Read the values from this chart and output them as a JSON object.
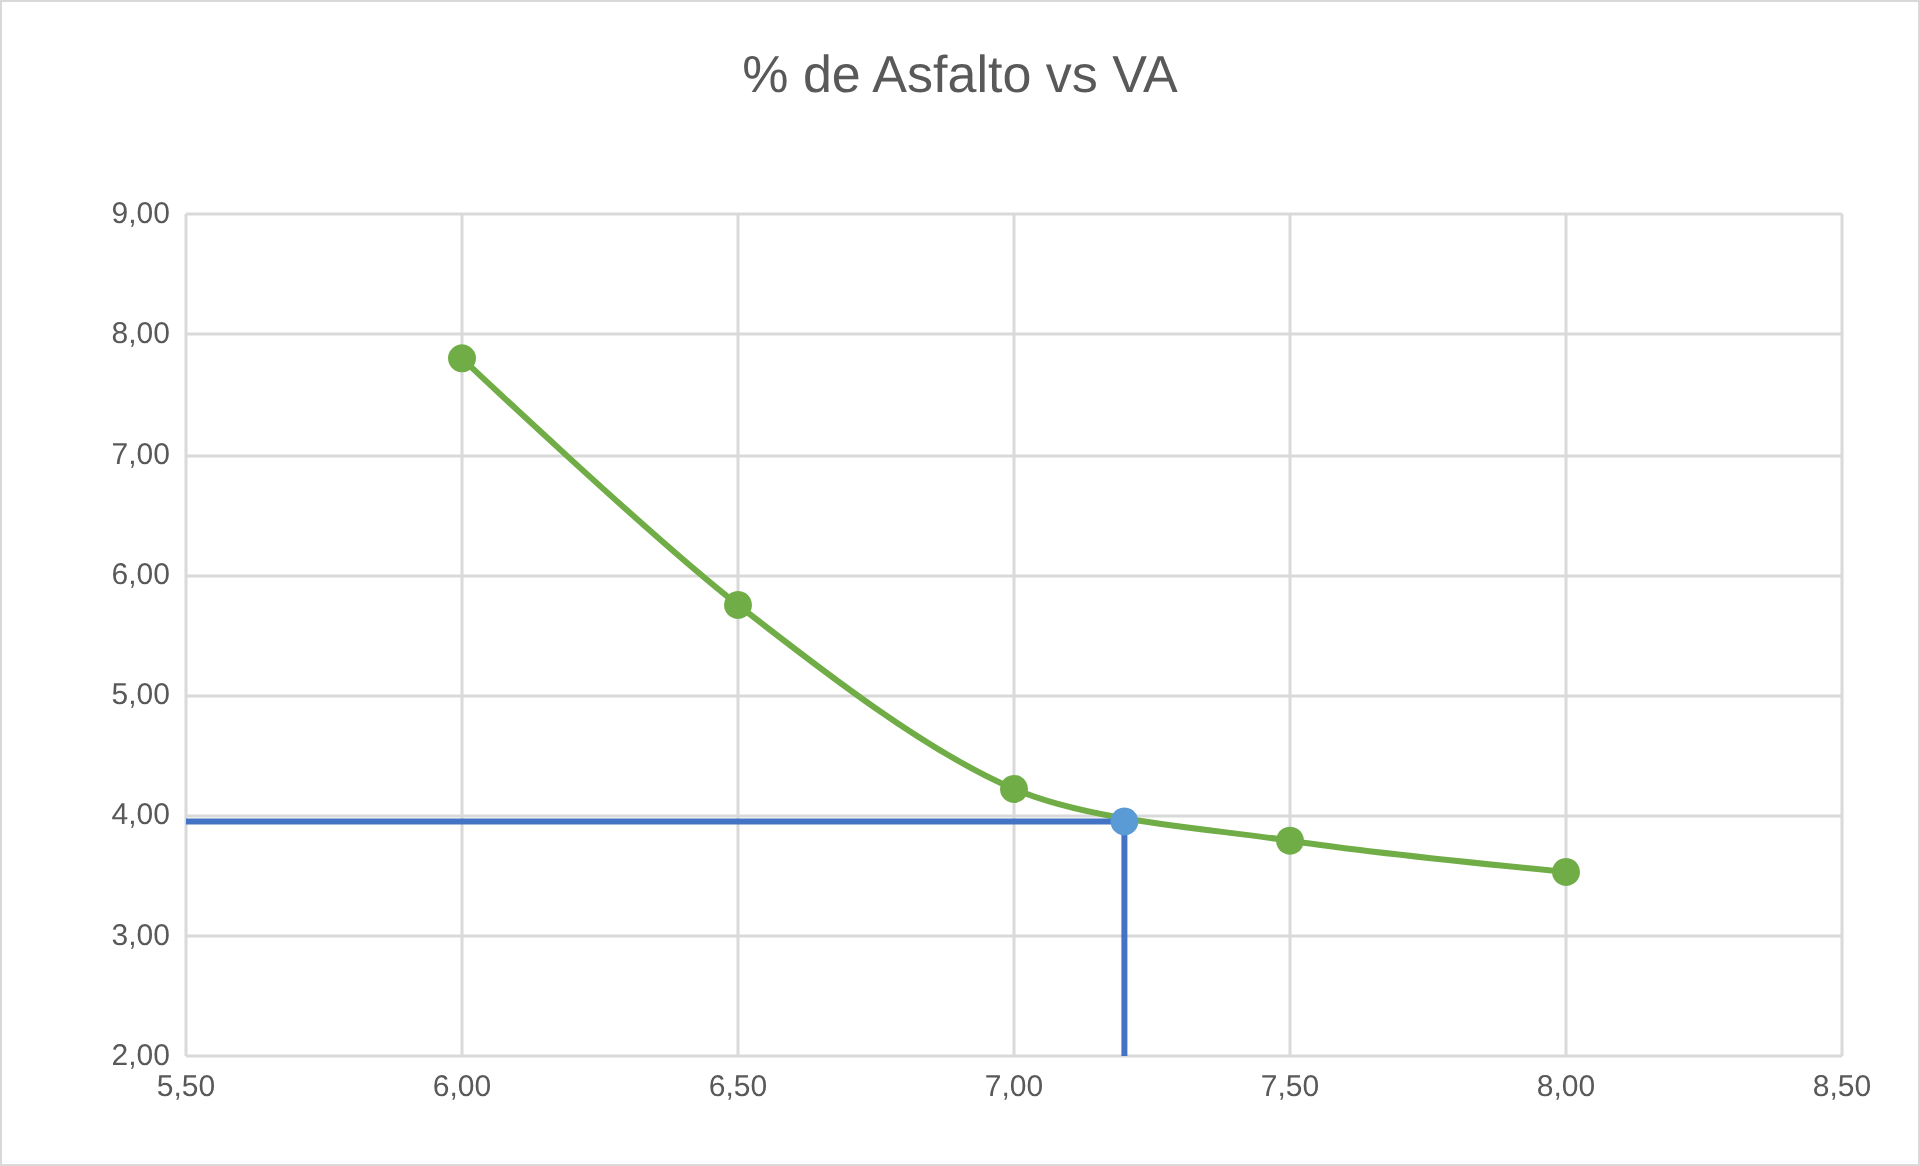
{
  "chart_data": {
    "type": "line",
    "title": "% de Asfalto vs VA",
    "series": [
      {
        "color": "#70ad47",
        "marker": "circle",
        "x": [
          6.0,
          6.5,
          7.0,
          7.5,
          8.0
        ],
        "values": [
          7.8,
          5.75,
          4.22,
          3.79,
          3.53
        ]
      },
      {
        "type": "step",
        "color": "#4472c4",
        "marker": "none",
        "x": [
          5.5,
          7.2
        ],
        "values": [
          3.95,
          2.0
        ]
      },
      {
        "type": "scatter",
        "color": "#5b9bd5",
        "marker": "circle",
        "x": [
          7.2
        ],
        "values": [
          3.95
        ]
      }
    ],
    "xlim": [
      5.5,
      8.5
    ],
    "xticks": [
      {
        "value": 5.5,
        "label": "5,50"
      },
      {
        "value": 6,
        "label": "6,00"
      },
      {
        "value": 6.5,
        "label": "6,50"
      },
      {
        "value": 7,
        "label": "7,00"
      },
      {
        "value": 7.5,
        "label": "7,50"
      },
      {
        "value": 8,
        "label": "8,00"
      },
      {
        "value": 8.5,
        "label": "8,50"
      }
    ],
    "ylim": [
      2,
      9
    ],
    "yticks": [
      {
        "value": 2,
        "label": "2,00"
      },
      {
        "value": 3,
        "label": "3,00"
      },
      {
        "value": 4,
        "label": "4,00"
      },
      {
        "value": 5,
        "label": "5,00"
      },
      {
        "value": 6,
        "label": "6,00"
      },
      {
        "value": 7,
        "label": "7,00"
      },
      {
        "value": 8,
        "label": "8,00"
      },
      {
        "value": 9,
        "label": "9,00"
      }
    ],
    "grid": true
  }
}
